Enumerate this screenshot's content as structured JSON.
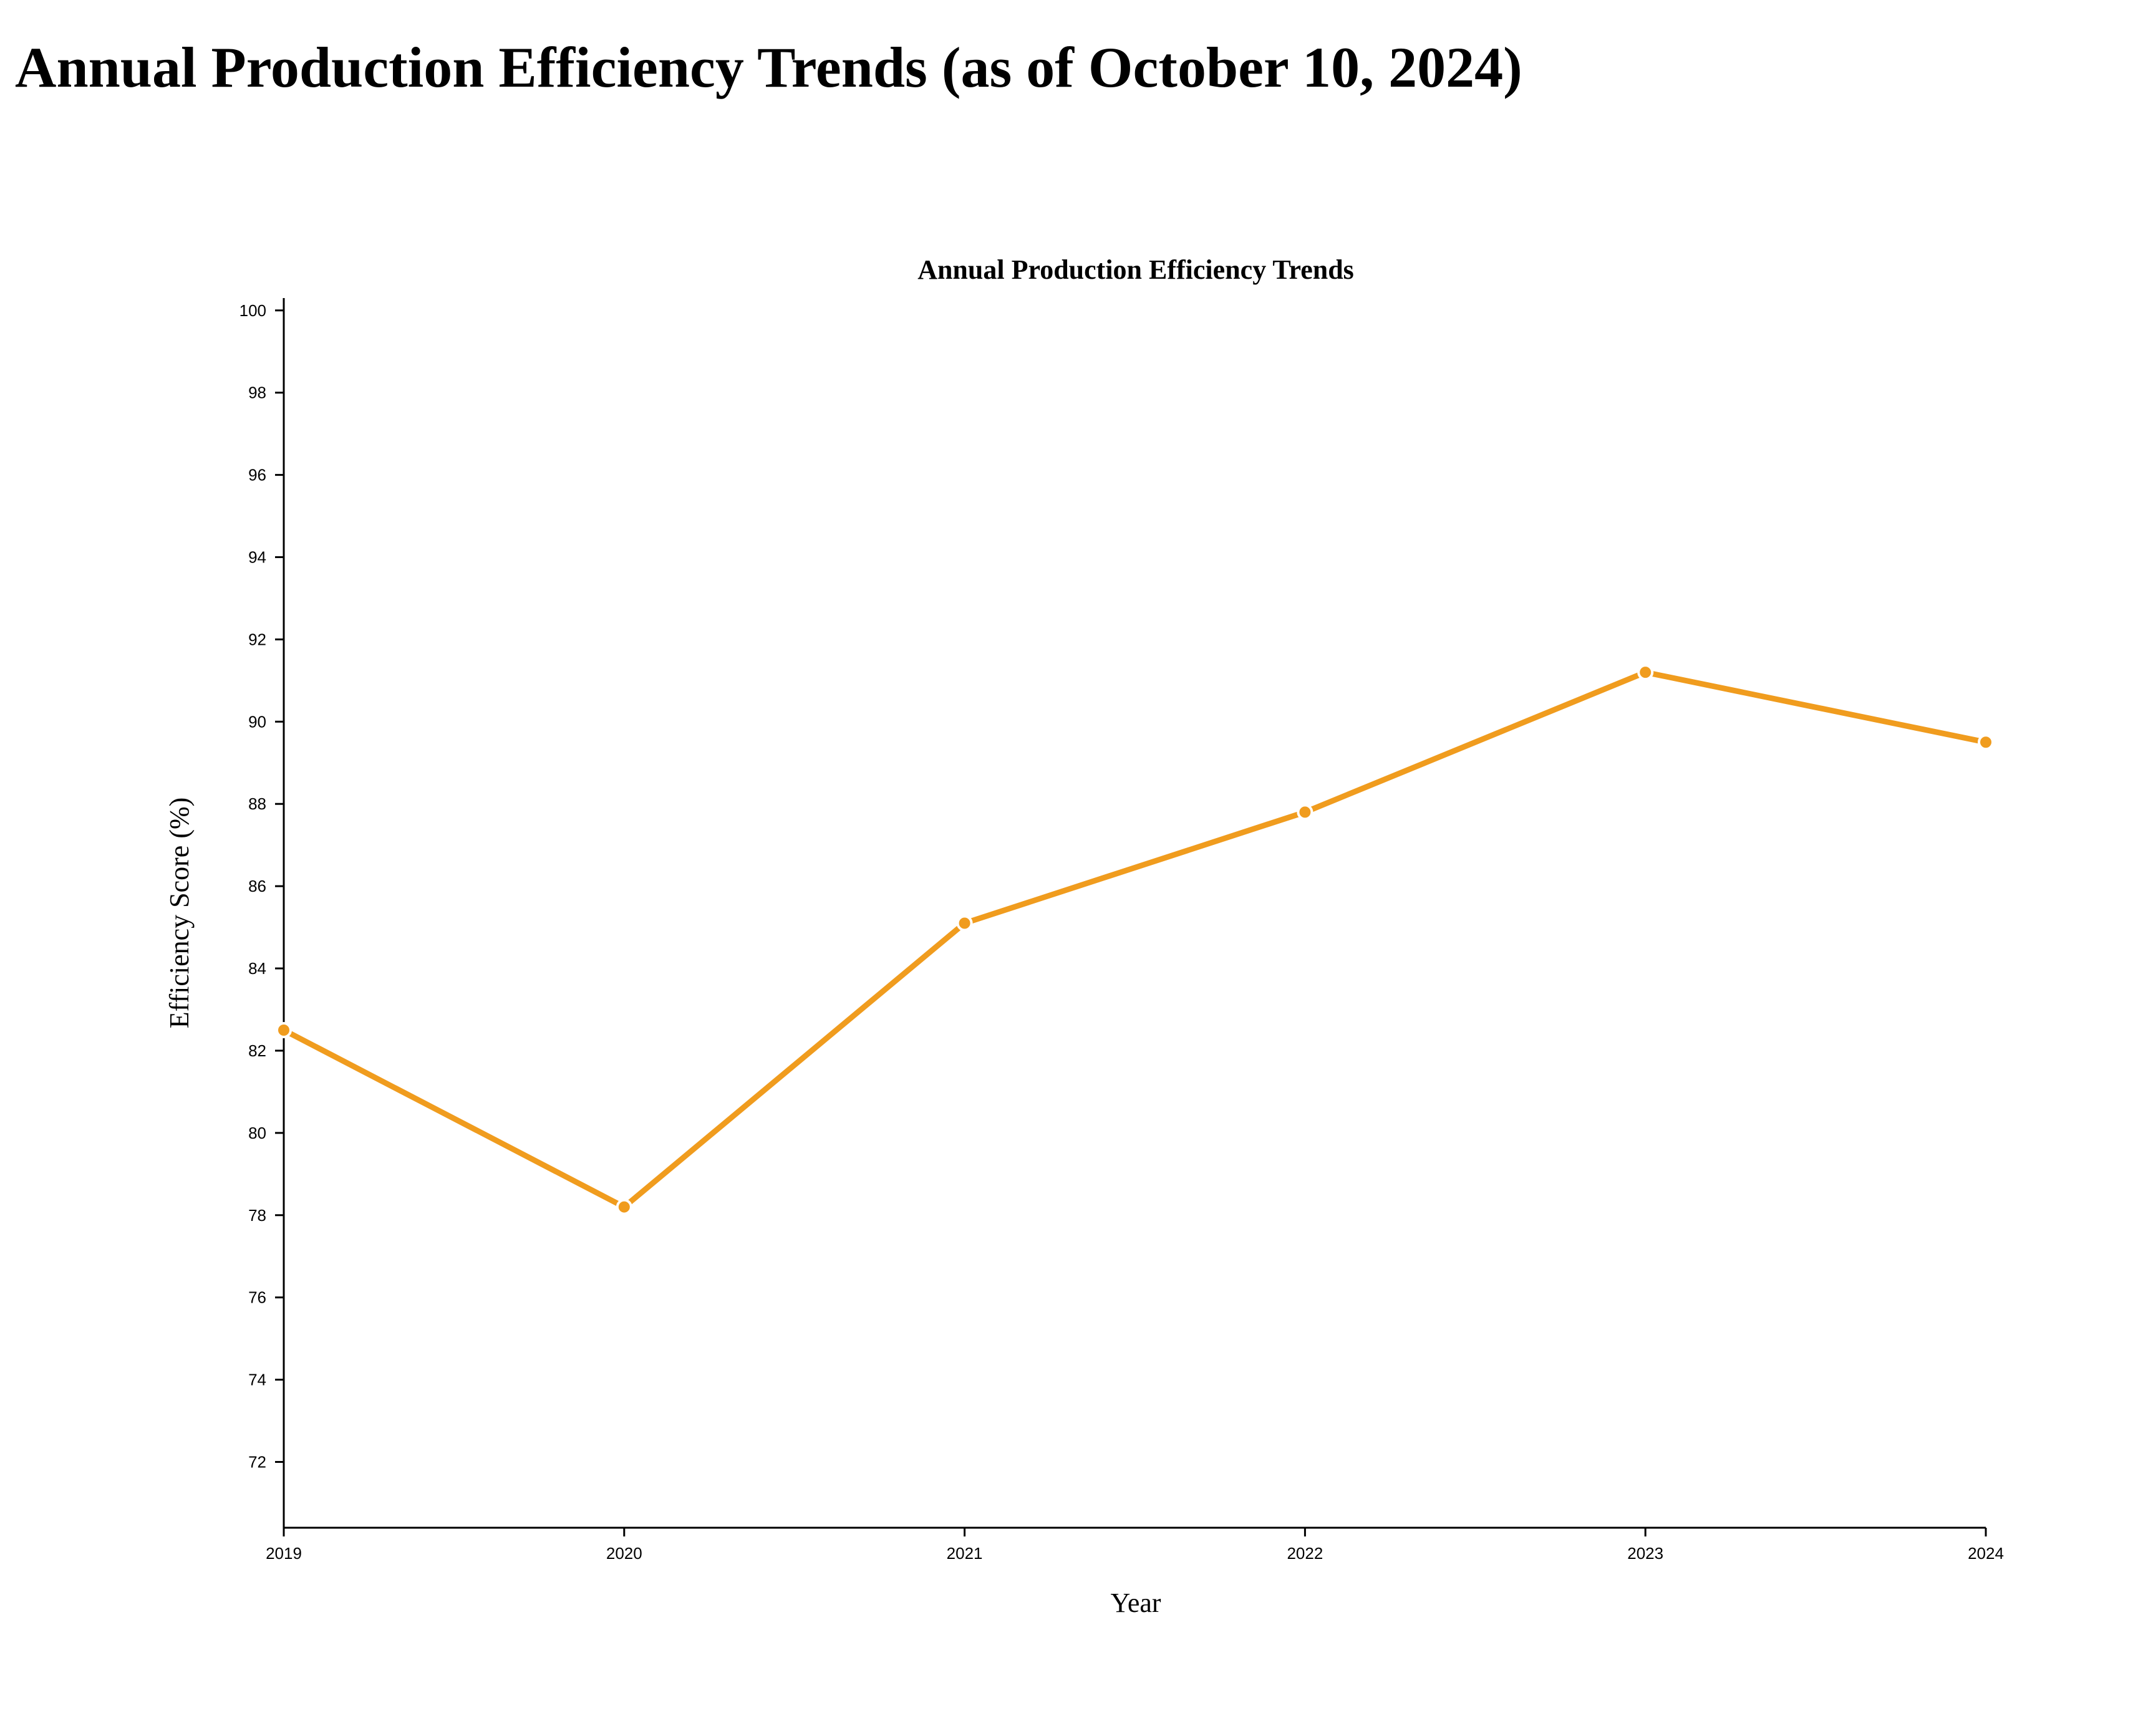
{
  "page": {
    "title": "Annual Production Efficiency Trends (as of October 10, 2024)"
  },
  "chart_data": {
    "type": "line",
    "title": "Annual Production Efficiency Trends",
    "xlabel": "Year",
    "ylabel": "Efficiency Score (%)",
    "x": [
      "2019",
      "2020",
      "2021",
      "2022",
      "2023",
      "2024"
    ],
    "series": [
      {
        "values": [
          82.5,
          78.2,
          85.1,
          87.8,
          91.2,
          89.5
        ],
        "color": "#f09c1e"
      }
    ],
    "ylim": [
      70.4,
      100.3
    ],
    "yticks": [
      72,
      74,
      76,
      78,
      80,
      82,
      84,
      86,
      88,
      90,
      92,
      94,
      96,
      98,
      100
    ],
    "grid": false,
    "legend": "none",
    "marker": "circle"
  }
}
